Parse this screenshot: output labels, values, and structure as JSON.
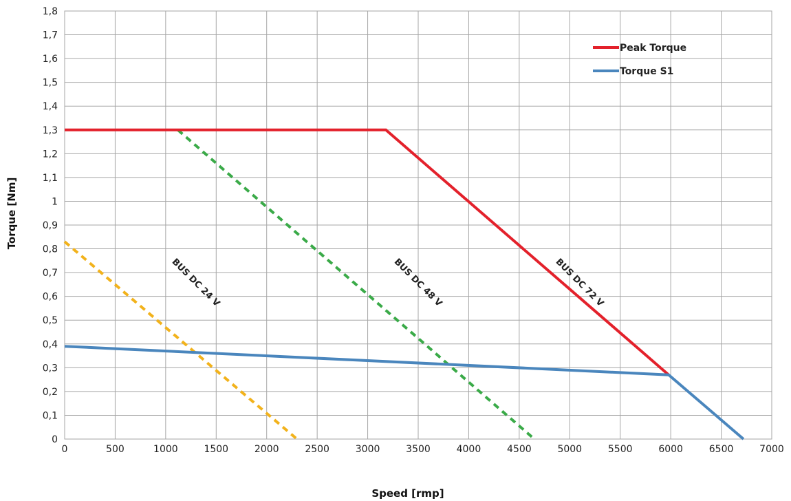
{
  "chart_data": {
    "type": "line",
    "xlabel": "Speed [rmp]",
    "ylabel": "Torque [Nm]",
    "xlim": [
      0,
      7000
    ],
    "ylim": [
      0,
      1.8
    ],
    "x_ticks": [
      0,
      500,
      1000,
      1500,
      2000,
      2500,
      3000,
      3500,
      4000,
      4500,
      5000,
      5500,
      6000,
      6500,
      7000
    ],
    "x_tick_labels": [
      "0",
      "500",
      "1000",
      "1500",
      "2000",
      "2500",
      "3000",
      "3500",
      "4000",
      "4500",
      "5000",
      "5500",
      "6000",
      "6500",
      "7000"
    ],
    "y_ticks": [
      0,
      0.1,
      0.2,
      0.3,
      0.4,
      0.5,
      0.6,
      0.7,
      0.8,
      0.9,
      1.0,
      1.1,
      1.2,
      1.3,
      1.4,
      1.5,
      1.6,
      1.7,
      1.8
    ],
    "y_tick_labels": [
      "0",
      "0,1",
      "0,2",
      "0,3",
      "0,4",
      "0,5",
      "0,6",
      "0,7",
      "0,8",
      "0,9",
      "1",
      "1,1",
      "1,2",
      "1,3",
      "1,4",
      "1,5",
      "1,6",
      "1,7",
      "1,8"
    ],
    "grid": true,
    "legend_position": "top-right",
    "series": [
      {
        "name": "Peak Torque",
        "color": "#e3212b",
        "style": "solid",
        "points": [
          [
            0,
            1.3
          ],
          [
            3180,
            1.3
          ],
          [
            5980,
            0.27
          ]
        ]
      },
      {
        "name": "Torque S1",
        "color": "#4a86bd",
        "style": "solid",
        "points": [
          [
            0,
            0.39
          ],
          [
            5980,
            0.27
          ],
          [
            6720,
            0
          ]
        ]
      }
    ],
    "bus_lines": [
      {
        "label": "BUS DC 24 V",
        "color": "#f2b21b",
        "style": "dashed",
        "points": [
          [
            0,
            0.83
          ],
          [
            2300,
            0
          ]
        ],
        "label_at": [
          1280,
          0.65
        ]
      },
      {
        "label": "BUS DC 48 V",
        "color": "#3aaa48",
        "style": "dashed",
        "points": [
          [
            1120,
            1.3
          ],
          [
            4650,
            0
          ]
        ],
        "label_at": [
          3480,
          0.65
        ]
      },
      {
        "label": "BUS DC 72 V",
        "color": "#e3212b",
        "style": "none",
        "points": [],
        "label_at": [
          5080,
          0.65
        ]
      }
    ]
  }
}
